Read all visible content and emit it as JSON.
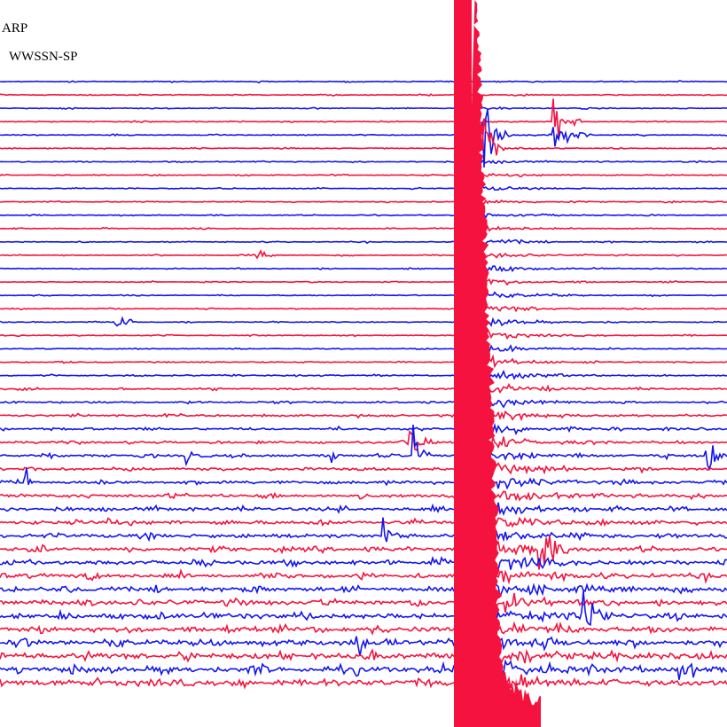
{
  "header": {
    "station": "ARP",
    "filter": "WWSSN-SP"
  }
}
